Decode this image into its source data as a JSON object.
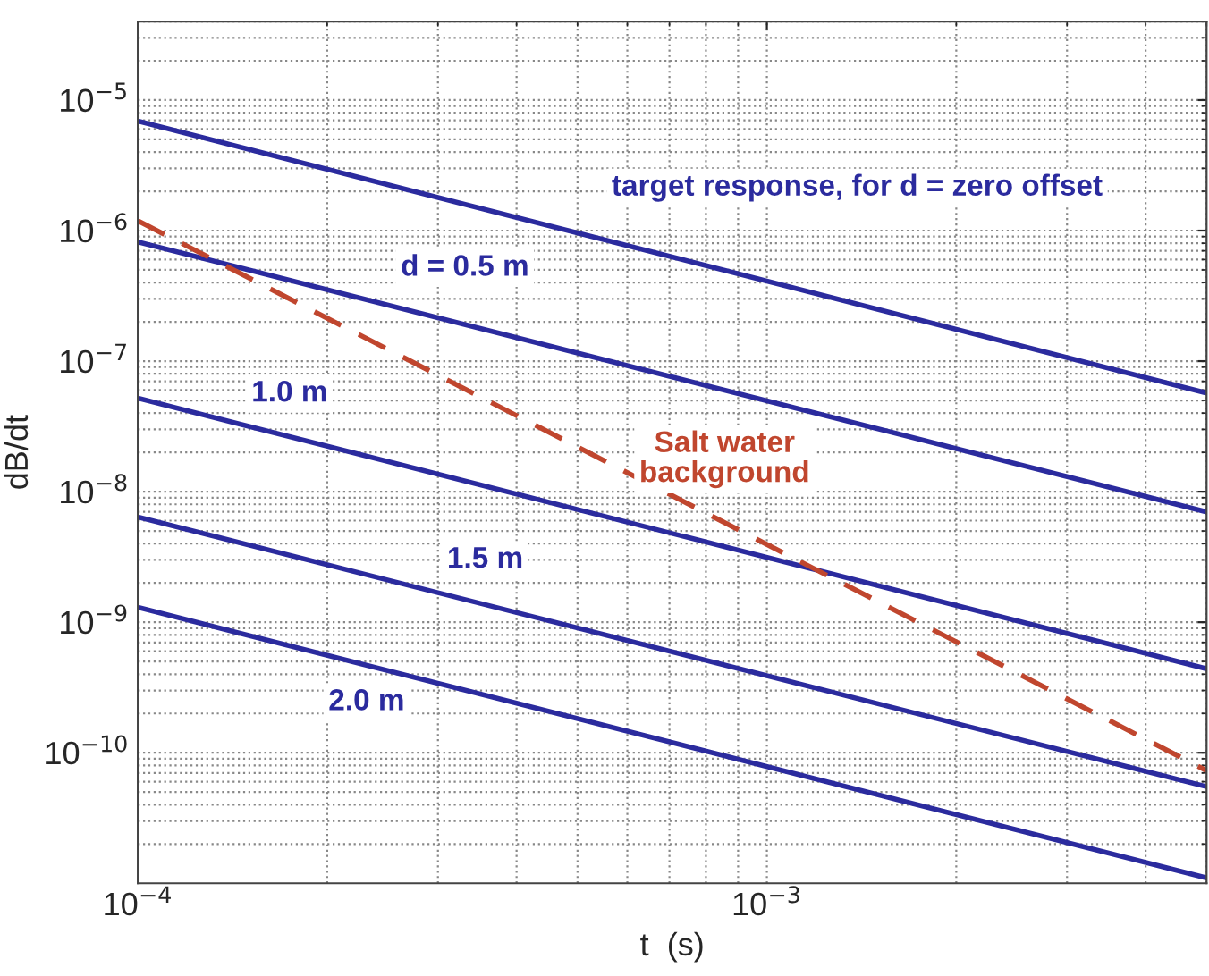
{
  "chart_data": {
    "type": "line",
    "xlabel": "t  (s)",
    "ylabel": "dB/dt",
    "log": "xy",
    "grid": true,
    "line_style": "solid",
    "marker": "none",
    "x": [
      0.0001,
      0.005
    ],
    "xlim": [
      0.0001,
      0.005
    ],
    "ylim": [
      1e-11,
      4e-05
    ],
    "xticks": [
      {
        "value": 0.0001,
        "label": "10$^{−4}$"
      },
      {
        "value": 0.001,
        "label": "10$^{−3}$"
      }
    ],
    "yticks": [
      {
        "value": 1e-10,
        "label": "10$^{−10}$"
      },
      {
        "value": 1e-09,
        "label": "10$^{−9}$"
      },
      {
        "value": 1e-08,
        "label": "10$^{−8}$"
      },
      {
        "value": 1e-07,
        "label": "10$^{−7}$"
      },
      {
        "value": 1e-06,
        "label": "10$^{−6}$"
      },
      {
        "value": 1e-05,
        "label": "10$^{−5}$"
      }
    ],
    "series": [
      {
        "name": "target response, for d = zero offset",
        "color": "#2b2b9e",
        "values": [
          6.9e-06,
          5.7e-08
        ]
      },
      {
        "name": "d = 0.5 m",
        "color": "#2b2b9e",
        "values": [
          8.2e-07,
          7e-09
        ]
      },
      {
        "name": "1.0 m",
        "color": "#2b2b9e",
        "values": [
          5.2e-08,
          4.4e-10
        ]
      },
      {
        "name": "1.5 m",
        "color": "#2b2b9e",
        "values": [
          6.4e-09,
          5.5e-11
        ]
      },
      {
        "name": "2.0 m",
        "color": "#2b2b9e",
        "values": [
          1.3e-09,
          1.1e-11
        ]
      },
      {
        "name": "Salt water\nbackground",
        "color": "#c0462e",
        "line_style": "dashed",
        "values": [
          1.19e-06,
          7.3e-11
        ]
      }
    ]
  }
}
